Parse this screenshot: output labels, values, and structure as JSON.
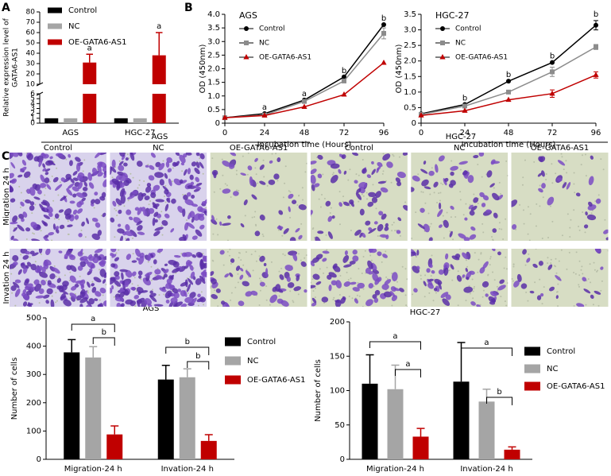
{
  "panel_labels": [
    "A",
    "B",
    "C"
  ],
  "chart_data": [
    {
      "type": "bar",
      "ylabel": [
        "Relative expression level of",
        "GATA6-AS1"
      ],
      "categories": [
        "AGS",
        "HGC-27"
      ],
      "series": [
        {
          "name": "Control",
          "color": "#000000",
          "values": [
            1,
            1
          ]
        },
        {
          "name": "NC",
          "color": "#a5a5a5",
          "values": [
            1,
            1
          ]
        },
        {
          "name": "OE-GATA6-AS1",
          "color": "#c00000",
          "values": [
            31,
            38
          ],
          "errors": [
            8,
            22
          ]
        }
      ],
      "ylim": [
        0,
        80
      ],
      "axis_break": [
        6,
        10
      ],
      "yticks": [
        0,
        1,
        2,
        3,
        4,
        5,
        6,
        10,
        20,
        30,
        40,
        50,
        60,
        70,
        80
      ],
      "annotations": [
        "a",
        "a"
      ],
      "legend": "top-left"
    },
    {
      "type": "line",
      "title": "AGS",
      "xlabel": "Incubation time (Hours)",
      "ylabel": "OD (450nm)",
      "x": [
        0,
        24,
        48,
        72,
        96
      ],
      "xlim": [
        0,
        96
      ],
      "xticks": [
        0,
        24,
        48,
        72,
        96
      ],
      "ylim": [
        0,
        4
      ],
      "yticks": [
        0,
        0.5,
        {
          "value": 1,
          "label": "1.0"
        },
        1.5,
        {
          "value": 2,
          "label": "2.0"
        },
        2.5,
        {
          "value": 3,
          "label": "3.0"
        },
        3.5,
        {
          "value": 4,
          "label": "4.0"
        }
      ],
      "series": [
        {
          "name": "Control",
          "color": "#000000",
          "marker": "circle",
          "values": [
            0.2,
            0.35,
            0.85,
            1.7,
            3.62
          ]
        },
        {
          "name": "NC",
          "color": "#8c8c8c",
          "marker": "square",
          "values": [
            0.2,
            0.3,
            0.8,
            1.55,
            3.3
          ],
          "errors": [
            null,
            null,
            null,
            null,
            0.2
          ]
        },
        {
          "name": "OE-GATA6-AS1",
          "color": "#c00000",
          "marker": "triangle",
          "values": [
            0.2,
            0.28,
            0.6,
            1.05,
            2.22
          ]
        }
      ],
      "point_labels": [
        null,
        "a",
        "a",
        "b",
        "b"
      ],
      "legend": "top-left"
    },
    {
      "type": "line",
      "title": "HGC-27",
      "xlabel": "Incubation time (Hours)",
      "ylabel": "OD (450nm)",
      "x": [
        0,
        24,
        48,
        72,
        96
      ],
      "xlim": [
        0,
        96
      ],
      "xticks": [
        0,
        24,
        48,
        72,
        96
      ],
      "ylim": [
        0,
        3.5
      ],
      "yticks": [
        0,
        0.5,
        {
          "value": 1,
          "label": "1.0"
        },
        1.5,
        {
          "value": 2,
          "label": "2.0"
        },
        2.5,
        {
          "value": 3,
          "label": "3.0"
        },
        3.5
      ],
      "series": [
        {
          "name": "Control",
          "color": "#000000",
          "marker": "circle",
          "values": [
            0.3,
            0.6,
            1.35,
            1.95,
            3.15
          ],
          "errors": [
            null,
            null,
            null,
            null,
            0.15
          ]
        },
        {
          "name": "NC",
          "color": "#8c8c8c",
          "marker": "square",
          "values": [
            0.28,
            0.55,
            1.0,
            1.65,
            2.45
          ],
          "errors": [
            null,
            null,
            null,
            0.15,
            0.08
          ]
        },
        {
          "name": "OE-GATA6-AS1",
          "color": "#c00000",
          "marker": "triangle",
          "values": [
            0.25,
            0.4,
            0.75,
            0.95,
            1.55
          ],
          "errors": [
            null,
            null,
            null,
            0.12,
            0.1
          ]
        }
      ],
      "point_labels": [
        null,
        "b",
        "b",
        "b",
        "b"
      ],
      "legend": "top-left"
    },
    {
      "type": "bar",
      "title": "AGS",
      "ylabel": "Number of cells",
      "categories": [
        "Migration-24 h",
        "Invation-24 h"
      ],
      "series": [
        {
          "name": "Control",
          "color": "#000000",
          "values": [
            378,
            282
          ],
          "errors": [
            45,
            50
          ]
        },
        {
          "name": "NC",
          "color": "#a5a5a5",
          "values": [
            360,
            290
          ],
          "errors": [
            38,
            30
          ]
        },
        {
          "name": "OE-GATA6-AS1",
          "color": "#c00000",
          "values": [
            88,
            65
          ],
          "errors": [
            30,
            22
          ]
        }
      ],
      "ylim": [
        0,
        500
      ],
      "yticks": [
        0,
        100,
        200,
        300,
        400,
        500
      ],
      "brackets": [
        "a",
        "b",
        "b",
        "b"
      ],
      "legend": "right"
    },
    {
      "type": "bar",
      "title": "HGC-27",
      "ylabel": "Number of cells",
      "categories": [
        "Migration-24 h",
        "Invation-24 h"
      ],
      "series": [
        {
          "name": "Control",
          "color": "#000000",
          "values": [
            110,
            113
          ],
          "errors": [
            42,
            57
          ]
        },
        {
          "name": "NC",
          "color": "#a5a5a5",
          "values": [
            102,
            84
          ],
          "errors": [
            35,
            18
          ]
        },
        {
          "name": "OE-GATA6-AS1",
          "color": "#c00000",
          "values": [
            33,
            14
          ],
          "errors": [
            12,
            4
          ]
        }
      ],
      "ylim": [
        0,
        200
      ],
      "yticks": [
        0,
        50,
        100,
        150,
        200
      ],
      "brackets": [
        "a",
        "a",
        "a",
        "b"
      ],
      "legend": "right"
    }
  ],
  "image_grid": {
    "groups": [
      "AGS",
      "HGC-27"
    ],
    "columns": [
      "Control",
      "NC",
      "OE-GATA6-AS1"
    ],
    "rows": [
      "Migration 24 h",
      "Invation 24 h"
    ]
  }
}
